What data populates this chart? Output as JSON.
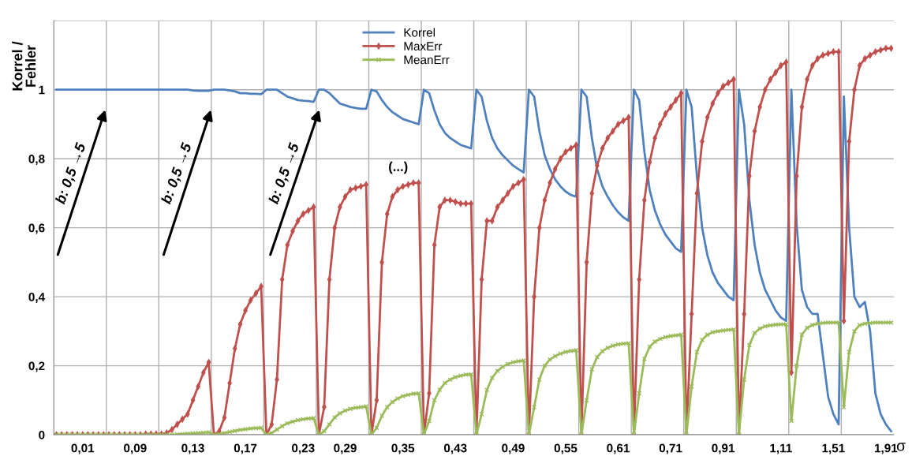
{
  "chart_data": {
    "type": "line",
    "ylabel": "Korrel /\nFehler",
    "xlabel": "σ",
    "categories": [
      null,
      null,
      null,
      null,
      null,
      "0,01",
      null,
      null,
      null,
      null,
      null,
      null,
      null,
      null,
      null,
      "0,09",
      null,
      null,
      null,
      null,
      null,
      null,
      null,
      null,
      null,
      null,
      "0,13",
      null,
      null,
      null,
      null,
      null,
      null,
      null,
      null,
      null,
      "0,17",
      null,
      null,
      null,
      null,
      null,
      null,
      null,
      null,
      null,
      null,
      "0,23",
      null,
      null,
      null,
      null,
      null,
      null,
      null,
      "0,29",
      null,
      null,
      null,
      null,
      null,
      null,
      null,
      null,
      null,
      null,
      "0,35",
      null,
      null,
      null,
      null,
      null,
      null,
      null,
      null,
      null,
      "0,43",
      null,
      null,
      null,
      null,
      null,
      null,
      null,
      null,
      null,
      null,
      "0,49",
      null,
      null,
      null,
      null,
      null,
      null,
      null,
      null,
      null,
      "0,55",
      null,
      null,
      null,
      null,
      null,
      null,
      null,
      null,
      null,
      "0,61",
      null,
      null,
      null,
      null,
      null,
      null,
      null,
      null,
      null,
      "0,71",
      null,
      null,
      null,
      null,
      null,
      null,
      null,
      null,
      null,
      "0,91",
      null,
      null,
      null,
      null,
      null,
      null,
      null,
      null,
      null,
      null,
      "1,11",
      null,
      null,
      null,
      null,
      null,
      null,
      null,
      null,
      null,
      "1,51",
      null,
      null,
      null,
      null,
      null,
      null,
      null,
      null,
      null,
      "1,91",
      null
    ],
    "series": [
      {
        "name": "Korrel",
        "color": "#4f81bd",
        "marker": "none",
        "values": [
          1,
          1,
          1,
          1,
          1,
          1,
          1,
          1,
          1,
          1,
          1,
          1,
          1,
          1,
          1,
          1,
          1,
          1,
          1,
          1,
          1,
          1,
          1,
          1,
          1,
          1,
          0.998,
          0.997,
          0.997,
          0.997,
          1,
          1,
          1,
          0.998,
          0.995,
          0.99,
          0.99,
          0.988,
          0.988,
          0.987,
          1,
          1,
          1,
          0.99,
          0.98,
          0.975,
          0.97,
          0.968,
          0.967,
          0.965,
          1,
          1,
          0.99,
          0.975,
          0.96,
          0.955,
          0.95,
          0.947,
          0.945,
          0.945,
          1,
          0.995,
          0.97,
          0.95,
          0.935,
          0.925,
          0.915,
          0.91,
          0.905,
          0.9,
          1,
          0.99,
          0.94,
          0.9,
          0.875,
          0.86,
          0.85,
          0.84,
          0.835,
          0.83,
          1,
          0.98,
          0.91,
          0.86,
          0.83,
          0.81,
          0.795,
          0.78,
          0.77,
          0.76,
          1,
          0.98,
          0.88,
          0.81,
          0.77,
          0.74,
          0.72,
          0.705,
          0.695,
          0.69,
          1,
          0.98,
          0.86,
          0.77,
          0.72,
          0.69,
          0.665,
          0.645,
          0.63,
          0.62,
          1,
          0.97,
          0.82,
          0.71,
          0.65,
          0.61,
          0.58,
          0.56,
          0.54,
          0.53,
          1,
          0.95,
          0.75,
          0.6,
          0.52,
          0.47,
          0.44,
          0.42,
          0.4,
          0.39,
          1,
          0.9,
          0.68,
          0.55,
          0.47,
          0.42,
          0.39,
          0.36,
          0.34,
          0.33,
          1,
          0.61,
          0.42,
          0.37,
          0.35,
          0.35,
          0.23,
          0.11,
          0.06,
          0.03,
          0.98,
          0.6,
          0.4,
          0.37,
          0.385,
          0.3,
          0.12,
          0.06,
          0.03,
          0.01
        ]
      },
      {
        "name": "MaxErr",
        "color": "#c0504d",
        "marker": "diamond",
        "values": [
          0,
          0,
          0,
          0,
          0,
          0,
          0,
          0,
          0,
          0,
          0,
          0,
          0,
          0,
          0,
          0,
          0,
          0.002,
          0.002,
          0.002,
          0.002,
          0.005,
          0.015,
          0.03,
          0.045,
          0.06,
          0.1,
          0.14,
          0.18,
          0.21,
          0,
          0.01,
          0.05,
          0.15,
          0.25,
          0.32,
          0.36,
          0.39,
          0.41,
          0.43,
          0,
          0.03,
          0.16,
          0.45,
          0.55,
          0.59,
          0.62,
          0.64,
          0.65,
          0.66,
          0,
          0.08,
          0.45,
          0.6,
          0.66,
          0.69,
          0.71,
          0.715,
          0.72,
          0.725,
          0,
          0.1,
          0.5,
          0.64,
          0.69,
          0.71,
          0.72,
          0.725,
          0.73,
          0.73,
          0,
          0.12,
          0.55,
          0.66,
          0.68,
          0.68,
          0.675,
          0.67,
          0.67,
          0.67,
          0,
          0.45,
          0.62,
          0.62,
          0.66,
          0.68,
          0.7,
          0.72,
          0.73,
          0.74,
          0,
          0.4,
          0.6,
          0.68,
          0.73,
          0.77,
          0.8,
          0.82,
          0.83,
          0.84,
          0,
          0.5,
          0.7,
          0.78,
          0.83,
          0.86,
          0.88,
          0.9,
          0.91,
          0.92,
          0,
          0.45,
          0.68,
          0.79,
          0.86,
          0.9,
          0.93,
          0.95,
          0.97,
          0.99,
          0,
          0.35,
          0.7,
          0.85,
          0.92,
          0.96,
          0.99,
          1.01,
          1.02,
          1.03,
          0,
          0.35,
          0.75,
          0.88,
          0.95,
          1.0,
          1.03,
          1.05,
          1.07,
          1.08,
          0.18,
          0.75,
          0.95,
          1.03,
          1.07,
          1.09,
          1.1,
          1.105,
          1.11,
          1.11,
          0.33,
          0.85,
          1.0,
          1.07,
          1.09,
          1.1,
          1.11,
          1.115,
          1.12,
          1.12
        ]
      },
      {
        "name": "MeanErr",
        "color": "#9bbb59",
        "marker": "cross",
        "values": [
          0,
          0,
          0,
          0,
          0,
          0,
          0,
          0,
          0,
          0,
          0,
          0,
          0,
          0,
          0,
          0,
          0,
          0,
          0,
          0,
          0,
          0,
          0,
          0.001,
          0.002,
          0.003,
          0.004,
          0.005,
          0.006,
          0.007,
          0,
          0.002,
          0.005,
          0.008,
          0.011,
          0.014,
          0.016,
          0.018,
          0.019,
          0.02,
          0,
          0.005,
          0.015,
          0.025,
          0.033,
          0.038,
          0.042,
          0.045,
          0.047,
          0.048,
          0,
          0.01,
          0.03,
          0.05,
          0.062,
          0.07,
          0.075,
          0.078,
          0.08,
          0.082,
          0,
          0.02,
          0.055,
          0.08,
          0.095,
          0.105,
          0.112,
          0.116,
          0.119,
          0.12,
          0,
          0.04,
          0.1,
          0.13,
          0.15,
          0.16,
          0.167,
          0.171,
          0.174,
          0.175,
          0,
          0.06,
          0.13,
          0.165,
          0.185,
          0.197,
          0.205,
          0.21,
          0.213,
          0.215,
          0,
          0.08,
          0.16,
          0.2,
          0.218,
          0.228,
          0.235,
          0.24,
          0.243,
          0.245,
          0,
          0.1,
          0.19,
          0.225,
          0.242,
          0.252,
          0.258,
          0.262,
          0.264,
          0.265,
          0,
          0.12,
          0.22,
          0.255,
          0.27,
          0.278,
          0.283,
          0.286,
          0.288,
          0.29,
          0,
          0.14,
          0.24,
          0.275,
          0.29,
          0.297,
          0.3,
          0.302,
          0.304,
          0.305,
          0,
          0.16,
          0.26,
          0.295,
          0.308,
          0.314,
          0.317,
          0.319,
          0.32,
          0.32,
          0.04,
          0.2,
          0.29,
          0.31,
          0.318,
          0.322,
          0.324,
          0.325,
          0.325,
          0.325,
          0.08,
          0.24,
          0.3,
          0.318,
          0.322,
          0.324,
          0.325,
          0.325,
          0.325,
          0.325
        ]
      }
    ],
    "ylim": [
      0,
      1.2
    ],
    "yticks": [
      0,
      {
        "value": 0.2,
        "label": "0,2"
      },
      {
        "value": 0.4,
        "label": "0,4"
      },
      {
        "value": 0.6,
        "label": "0,6"
      },
      {
        "value": 0.8,
        "label": "0,8"
      },
      1,
      {
        "value": 1.2,
        "label": null
      }
    ],
    "grid": true,
    "legend": "top center",
    "line_style": "solid",
    "annotations": [
      "b: 0,5 →5",
      "b: 0,5 →5",
      "b: 0,5 →5",
      "(...)"
    ]
  }
}
